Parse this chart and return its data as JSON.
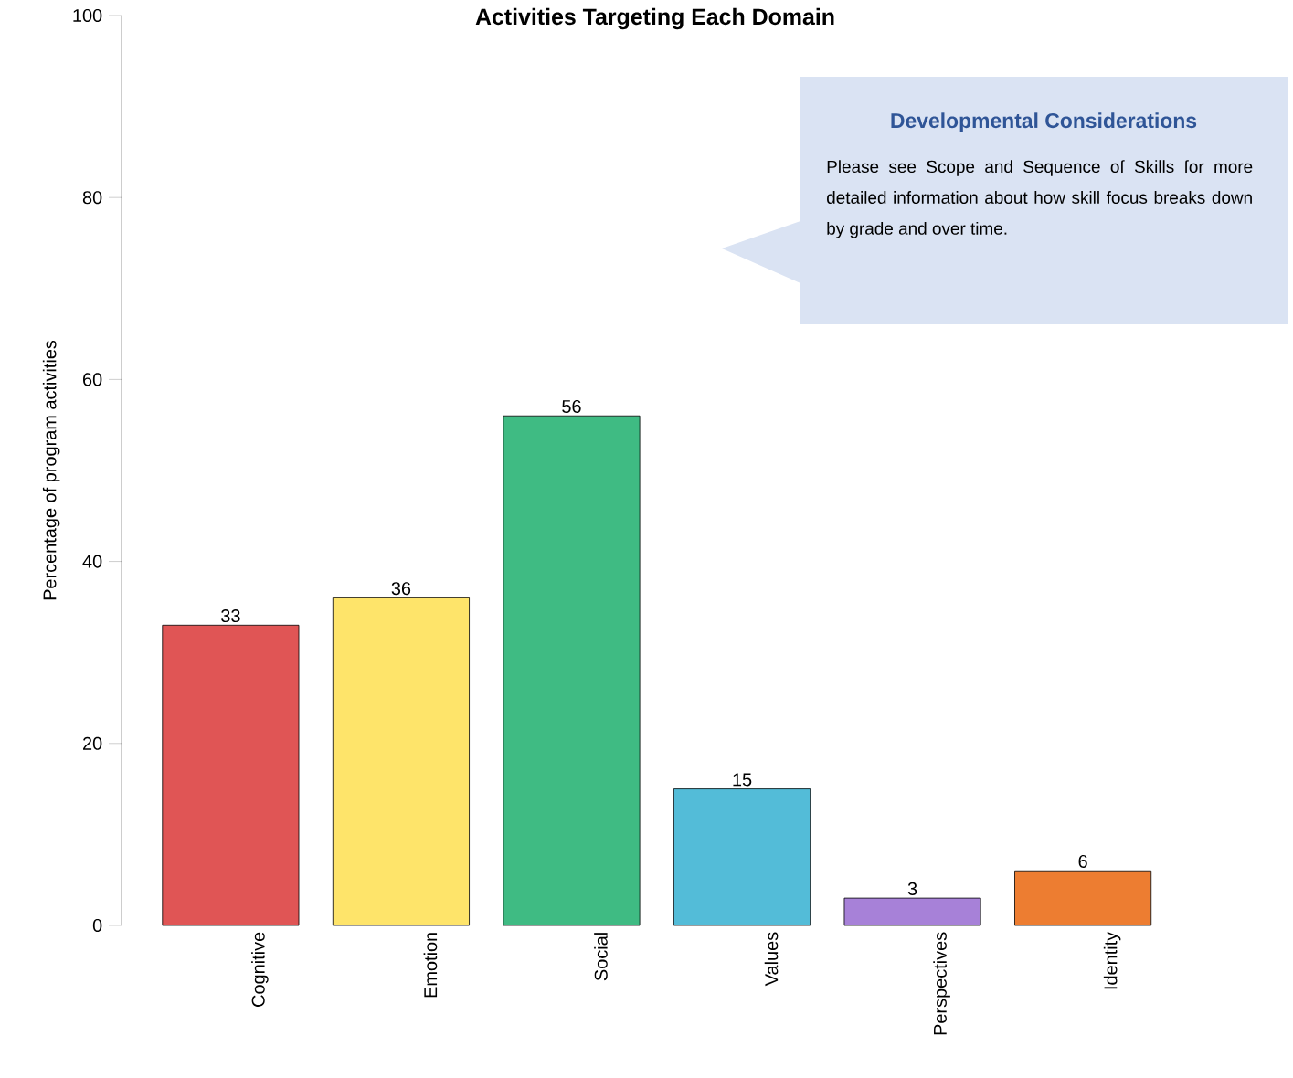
{
  "chart_data": {
    "type": "bar",
    "title": "Activities Targeting Each Domain",
    "ylabel": "Percentage of program activities",
    "categories": [
      "Cognitive",
      "Emotion",
      "Social",
      "Values",
      "Perspectives",
      "Identity"
    ],
    "values": [
      33,
      36,
      56,
      15,
      3,
      6
    ],
    "colors": [
      "#e05555",
      "#fee46a",
      "#3fbb83",
      "#53bcd8",
      "#a781d8",
      "#ed7d31"
    ],
    "ylim": [
      0,
      100
    ],
    "yticks": [
      0,
      20,
      40,
      60,
      80,
      100
    ],
    "data_labels": true,
    "grid": false,
    "annotations": [
      "Developmental Considerations",
      "Please see Scope and Sequence of Skills for more detailed information about how skill focus breaks down by grade and over time."
    ]
  }
}
